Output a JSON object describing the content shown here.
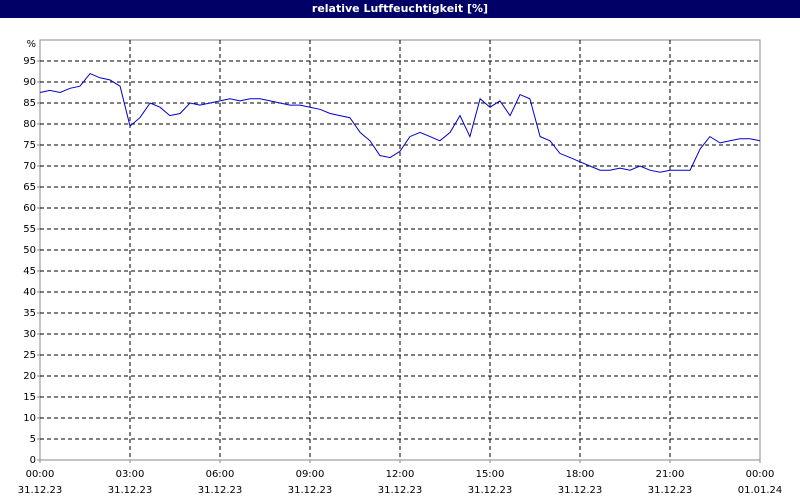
{
  "chart_data": {
    "type": "line",
    "title": "relative Luftfeuchtigkeit [%]",
    "y_label": "%",
    "x": [
      0,
      0.33,
      0.67,
      1,
      1.33,
      1.67,
      2,
      2.33,
      2.67,
      3,
      3.33,
      3.67,
      4,
      4.33,
      4.67,
      5,
      5.33,
      5.67,
      6,
      6.33,
      6.67,
      7,
      7.33,
      7.67,
      8,
      8.33,
      8.67,
      9,
      9.33,
      9.67,
      10,
      10.33,
      10.67,
      11,
      11.33,
      11.67,
      12,
      12.33,
      12.67,
      13,
      13.33,
      13.67,
      14,
      14.33,
      14.67,
      15,
      15.33,
      15.67,
      16,
      16.33,
      16.67,
      17,
      17.33,
      17.67,
      18,
      18.33,
      18.67,
      19,
      19.33,
      19.67,
      20,
      20.33,
      20.67,
      21,
      21.33,
      21.67,
      22,
      22.33,
      22.67,
      23,
      23.33,
      23.67,
      24
    ],
    "series": [
      {
        "name": "relative Luftfeuchtigkeit",
        "color": "#0000cc",
        "values": [
          87.5,
          88,
          87.5,
          88.5,
          89,
          92,
          91,
          90.5,
          89,
          79.5,
          81.5,
          85,
          84,
          82,
          82.5,
          85,
          84.5,
          85,
          85.5,
          86,
          85.5,
          86,
          86,
          85.5,
          85,
          84.5,
          84.5,
          84,
          83.5,
          82.5,
          82,
          81.5,
          78,
          76,
          72.5,
          72,
          73.5,
          77,
          78,
          77,
          76,
          78,
          82,
          77,
          86,
          84,
          85.5,
          82,
          87,
          86,
          77,
          76,
          73,
          72,
          71,
          70,
          69,
          69,
          69.5,
          69,
          70,
          69,
          68.5,
          69,
          69,
          69,
          74,
          77,
          75.5,
          76,
          76.5,
          76.5,
          76
        ]
      }
    ],
    "xlim": [
      0,
      24
    ],
    "xticks": [
      {
        "value": 0,
        "label": "00:00"
      },
      {
        "value": 3,
        "label": "03:00"
      },
      {
        "value": 6,
        "label": "06:00"
      },
      {
        "value": 9,
        "label": "09:00"
      },
      {
        "value": 12,
        "label": "12:00"
      },
      {
        "value": 15,
        "label": "15:00"
      },
      {
        "value": 18,
        "label": "18:00"
      },
      {
        "value": 21,
        "label": "21:00"
      },
      {
        "value": 24,
        "label": "00:00"
      }
    ],
    "xtick_dates": [
      "31.12.23",
      "31.12.23",
      "31.12.23",
      "31.12.23",
      "31.12.23",
      "31.12.23",
      "31.12.23",
      "31.12.23",
      "01.01.24"
    ],
    "ylim": [
      0,
      100
    ],
    "yticks": [
      0,
      5,
      10,
      15,
      20,
      25,
      30,
      35,
      40,
      45,
      50,
      55,
      60,
      65,
      70,
      75,
      80,
      85,
      90,
      95
    ],
    "grid": true
  }
}
